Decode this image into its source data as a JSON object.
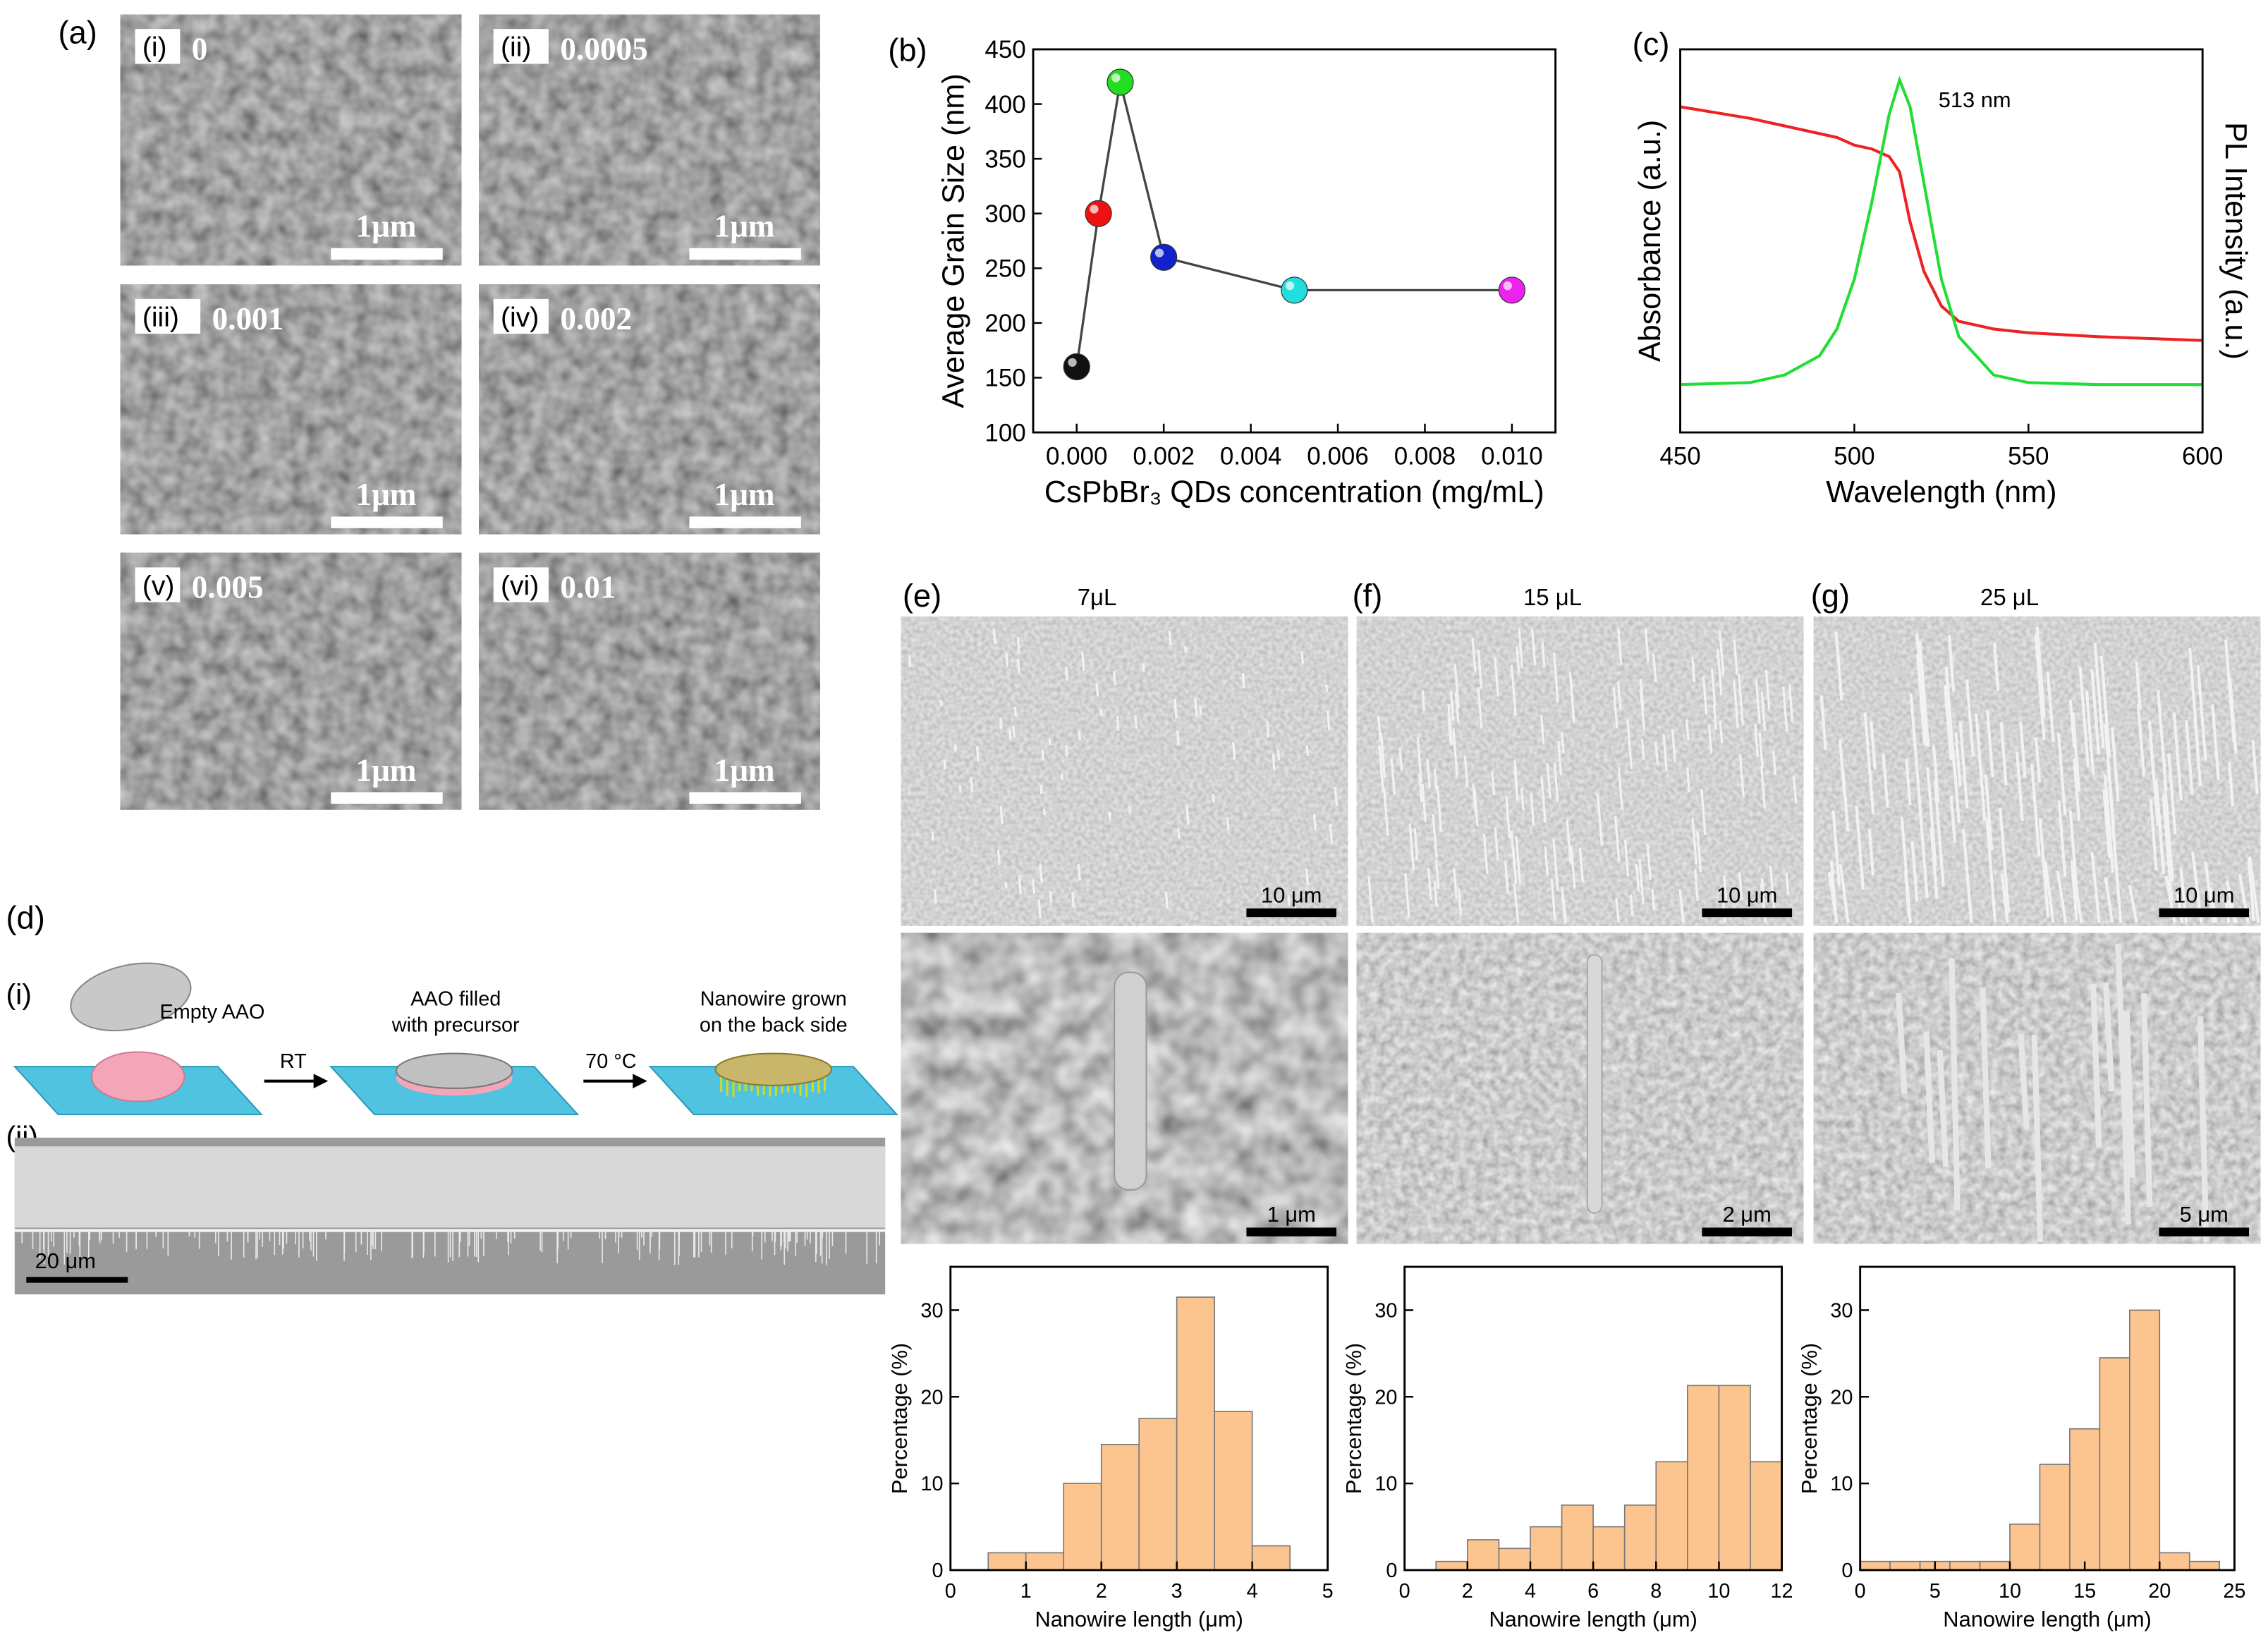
{
  "panel_labels": [
    "(a)",
    "(b)",
    "(c)",
    "(d)",
    "(e)",
    "(f)",
    "(g)"
  ],
  "sem_a": [
    {
      "tag": "(i)",
      "label": "0",
      "scale": "1μm"
    },
    {
      "tag": "(ii)",
      "label": "0.0005",
      "scale": "1μm"
    },
    {
      "tag": "(iii)",
      "label": "0.001",
      "scale": "1μm"
    },
    {
      "tag": "(iv)",
      "label": "0.002",
      "scale": "1μm"
    },
    {
      "tag": "(v)",
      "label": "0.005",
      "scale": "1μm"
    },
    {
      "tag": "(vi)",
      "label": "0.01",
      "scale": "1μm"
    }
  ],
  "schematic": {
    "tag": "(i)",
    "steps": [
      [
        "Empty AAO"
      ],
      [
        "AAO filled",
        "with precursor"
      ],
      [
        "Nanowire grown",
        "on the back side"
      ]
    ],
    "arrows": [
      "RT",
      "70 °C"
    ]
  },
  "cross_section": {
    "tag": "(ii)",
    "scale": "20 μm"
  },
  "sem_efg": [
    {
      "volume": "7μL",
      "scale_top": "10 μm",
      "scale_bottom": "1 μm"
    },
    {
      "volume": "15 μL",
      "scale_top": "10 μm",
      "scale_bottom": "2 μm"
    },
    {
      "volume": "25 μL",
      "scale_top": "10 μm",
      "scale_bottom": "5 μm"
    }
  ],
  "chart_data": [
    {
      "type": "line",
      "xlabel": "CsPbBr₃ QDs concentration (mg/mL)",
      "ylabel": "Average Grain Size (nm)",
      "x": [
        0,
        0.0005,
        0.001,
        0.002,
        0.005,
        0.01
      ],
      "values": [
        160,
        300,
        420,
        260,
        230,
        230
      ],
      "point_colors": [
        "#111111",
        "#ee1111",
        "#22dd22",
        "#1122cc",
        "#22dddd",
        "#ee22ee"
      ],
      "line_color": "#444444",
      "xlim": [
        -0.001,
        0.011
      ],
      "xticks": [
        {
          "value": 0,
          "label": "0.000"
        },
        {
          "value": 0.002,
          "label": "0.002"
        },
        {
          "value": 0.004,
          "label": "0.004"
        },
        {
          "value": 0.006,
          "label": "0.006"
        },
        {
          "value": 0.008,
          "label": "0.008"
        },
        {
          "value": 0.01,
          "label": "0.010"
        }
      ],
      "ylim": [
        100,
        450
      ],
      "yticks": [
        100,
        150,
        200,
        250,
        300,
        350,
        400,
        450
      ]
    },
    {
      "type": "line",
      "xlabel": "Wavelength (nm)",
      "ylabel": "Absorbance (a.u.)",
      "y2label": "PL Intensity (a.u.)",
      "annotation": "513 nm",
      "x": [
        450,
        470,
        480,
        490,
        495,
        500,
        505,
        510,
        513,
        516,
        520,
        525,
        530,
        540,
        550,
        570,
        600
      ],
      "series": [
        {
          "name": "Absorbance",
          "color": "#ee2222",
          "values": [
            0.85,
            0.82,
            0.8,
            0.78,
            0.77,
            0.75,
            0.74,
            0.72,
            0.68,
            0.55,
            0.42,
            0.33,
            0.29,
            0.27,
            0.26,
            0.25,
            0.24
          ]
        },
        {
          "name": "PL",
          "color": "#22dd33",
          "values": [
            0.125,
            0.13,
            0.15,
            0.2,
            0.27,
            0.4,
            0.6,
            0.83,
            0.92,
            0.85,
            0.65,
            0.4,
            0.25,
            0.15,
            0.13,
            0.125,
            0.125
          ]
        }
      ],
      "xlim": [
        450,
        600
      ],
      "xticks": [
        450,
        500,
        550,
        600
      ],
      "ylim": [
        0,
        1
      ]
    },
    {
      "type": "histogram",
      "xlabel": "Nanowire length (μm)",
      "ylabel": "Percentage (%)",
      "color": "#fcc590",
      "bins": [
        0.5,
        1,
        1.5,
        2,
        2.5,
        3,
        3.5,
        4,
        4.5
      ],
      "values": [
        2,
        2,
        10,
        14.5,
        17.5,
        31.5,
        18.3,
        2.8
      ],
      "xlim": [
        0,
        5
      ],
      "xticks": [
        0,
        1,
        2,
        3,
        4,
        5
      ],
      "ylim": [
        0,
        35
      ],
      "yticks": [
        0,
        10,
        20,
        30
      ]
    },
    {
      "type": "histogram",
      "xlabel": "Nanowire length (μm)",
      "ylabel": "Percentage (%)",
      "color": "#fcc590",
      "bins": [
        1,
        2,
        3,
        4,
        5,
        6,
        7,
        8,
        9,
        10,
        11,
        12
      ],
      "values": [
        1,
        3.5,
        2.5,
        5,
        7.5,
        5,
        7.5,
        12.5,
        21.3,
        21.3,
        12.5
      ],
      "xlim": [
        0,
        12
      ],
      "xticks": [
        0,
        2,
        4,
        6,
        8,
        10,
        12
      ],
      "ylim": [
        0,
        35
      ],
      "yticks": [
        0,
        10,
        20,
        30
      ]
    },
    {
      "type": "histogram",
      "xlabel": "Nanowire length (μm)",
      "ylabel": "Percentage (%)",
      "color": "#fcc590",
      "bins": [
        0,
        2,
        4,
        6,
        8,
        10,
        12,
        14,
        16,
        18,
        20,
        22,
        24
      ],
      "values": [
        1,
        1,
        1,
        1,
        1,
        5.3,
        12.2,
        16.3,
        24.5,
        30,
        2,
        1
      ],
      "xlim": [
        0,
        25
      ],
      "xticks": [
        0,
        5,
        10,
        15,
        20,
        25
      ],
      "ylim": [
        0,
        35
      ],
      "yticks": [
        0,
        10,
        20,
        30
      ]
    }
  ]
}
